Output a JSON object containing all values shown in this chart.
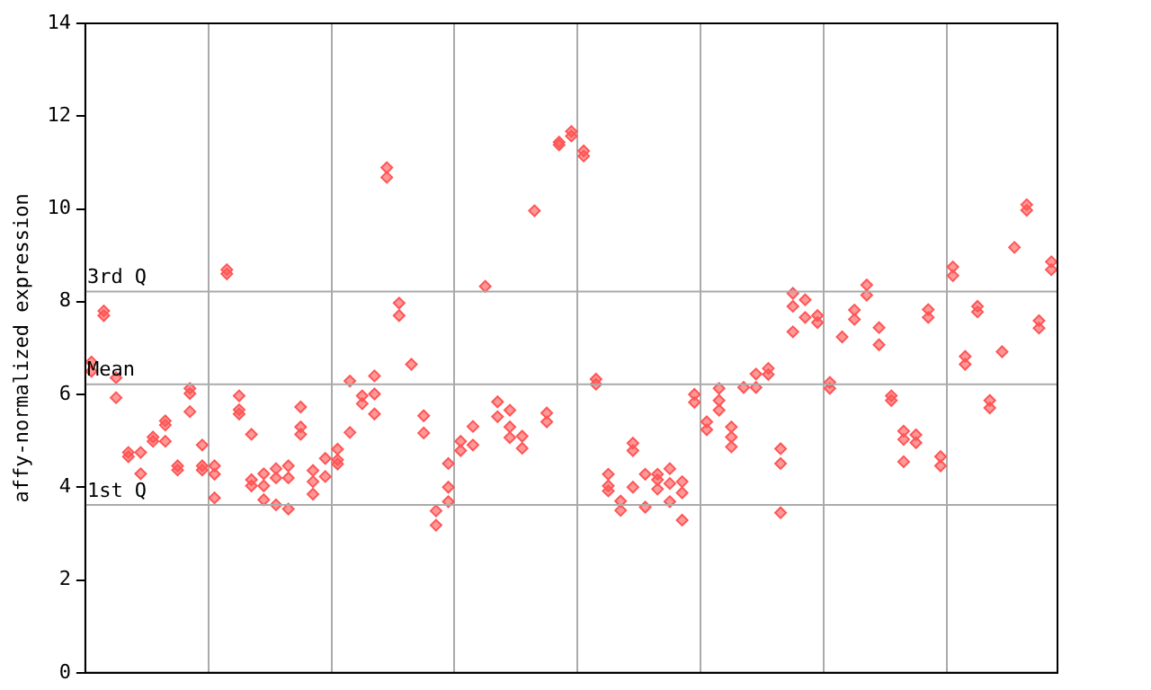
{
  "chart_data": {
    "type": "scatter",
    "ylabel": "affy-normalized expression",
    "categories": [
      null,
      null,
      null,
      null,
      null,
      null,
      null,
      null,
      null,
      null,
      null,
      null,
      null,
      null,
      null,
      null,
      null,
      null,
      null,
      null,
      null,
      null,
      null,
      null,
      null,
      null,
      null,
      null,
      null,
      null,
      null,
      null,
      null,
      null,
      null,
      null,
      null,
      null,
      null,
      null,
      null,
      null,
      null,
      null,
      null,
      null,
      null,
      null,
      null,
      null,
      null,
      null,
      null,
      null,
      null,
      null,
      null,
      null,
      null,
      null,
      null,
      null,
      null,
      null,
      null,
      null,
      null,
      null,
      null,
      null,
      null,
      null,
      null,
      null,
      null,
      null,
      null,
      null,
      null
    ],
    "ylim": [
      0,
      14
    ],
    "yticks": [
      0,
      2,
      4,
      6,
      8,
      10,
      12,
      14
    ],
    "grid": "x",
    "tick_labels": "y",
    "marker": "diamond",
    "legend": false,
    "ref_lines": [
      {
        "axis": "y",
        "value": 8.22,
        "label": "3rd Q",
        "color": "#aaaaaa"
      },
      {
        "axis": "y",
        "value": 6.22,
        "label": "Mean",
        "color": "#aaaaaa"
      },
      {
        "axis": "y",
        "value": 3.62,
        "label": "1st Q",
        "color": "#aaaaaa"
      }
    ],
    "series": [
      {
        "color": "#ff5555",
        "values": [
          6.7,
          7.8,
          6.36,
          4.75,
          4.75,
          5.08,
          5.43,
          4.46,
          6.13,
          4.91,
          4.46,
          8.69,
          5.97,
          5.14,
          4.29,
          4.4,
          4.46,
          5.73,
          4.36,
          4.62,
          4.82,
          6.29,
          5.97,
          6.4,
          10.89,
          7.97,
          6.65,
          5.54,
          3.49,
          4.51,
          4.99,
          5.31,
          8.33,
          5.84,
          5.66,
          5.1,
          9.96,
          5.6,
          11.44,
          11.67,
          11.25,
          6.33,
          4.28,
          3.7,
          4.95,
          4.28,
          4.28,
          4.4,
          4.12,
          6.0,
          5.41,
          6.13,
          5.3,
          6.15,
          6.44,
          6.56,
          4.83,
          8.18,
          8.04,
          7.7,
          6.26,
          7.24,
          7.82,
          8.36,
          7.44,
          5.97,
          5.21,
          5.13,
          7.83,
          4.66,
          8.75,
          6.82,
          7.9,
          5.87,
          6.92,
          9.17,
          10.09,
          7.59,
          8.86
        ]
      },
      {
        "color": "#ff5555",
        "values": [
          6.5,
          7.7,
          5.93,
          4.66,
          4.29,
          4.99,
          5.34,
          4.37,
          6.02,
          4.46,
          4.28,
          8.6,
          5.67,
          4.16,
          4.03,
          4.2,
          4.2,
          5.3,
          4.12,
          4.23,
          4.59,
          5.18,
          5.8,
          6.01,
          10.68,
          7.7,
          null,
          5.17,
          3.18,
          4.0,
          4.79,
          4.91,
          null,
          5.52,
          5.3,
          4.84,
          null,
          5.41,
          11.38,
          11.57,
          11.14,
          6.22,
          4.03,
          3.5,
          4.79,
          3.57,
          4.16,
          4.08,
          3.88,
          5.83,
          5.24,
          5.87,
          5.08,
          null,
          6.15,
          6.43,
          4.51,
          7.9,
          7.66,
          7.55,
          6.13,
          null,
          7.62,
          8.14,
          7.07,
          5.87,
          5.03,
          4.96,
          7.66,
          4.46,
          8.56,
          6.65,
          7.78,
          5.71,
          null,
          null,
          9.97,
          7.43,
          8.69
        ]
      },
      {
        "color": "#ff5555",
        "values": [
          null,
          null,
          null,
          null,
          null,
          null,
          4.99,
          null,
          5.63,
          4.37,
          3.77,
          null,
          5.58,
          4.03,
          3.73,
          3.62,
          3.53,
          5.14,
          3.85,
          null,
          4.5,
          null,
          null,
          5.58,
          null,
          null,
          null,
          null,
          null,
          3.69,
          null,
          null,
          null,
          null,
          5.07,
          null,
          null,
          null,
          null,
          null,
          null,
          null,
          3.92,
          null,
          4.0,
          null,
          3.96,
          3.69,
          3.29,
          null,
          null,
          5.66,
          4.87,
          null,
          null,
          null,
          3.45,
          7.35,
          null,
          null,
          null,
          null,
          null,
          null,
          null,
          null,
          4.55,
          null,
          null,
          null,
          null,
          null,
          null,
          null,
          null,
          null,
          null,
          null,
          null
        ]
      }
    ]
  }
}
